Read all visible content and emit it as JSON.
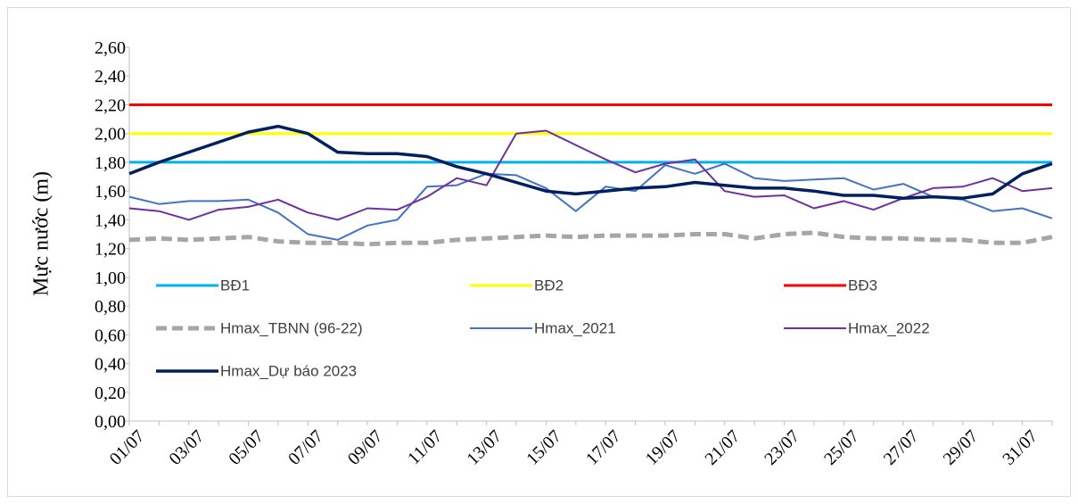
{
  "chart_data": {
    "type": "line",
    "y_label": "Mực nước (m)",
    "categories": [
      "01/07",
      null,
      "03/07",
      null,
      "05/07",
      null,
      "07/07",
      null,
      "09/07",
      null,
      "11/07",
      null,
      "13/07",
      null,
      "15/07",
      null,
      "17/07",
      null,
      "19/07",
      null,
      "21/07",
      null,
      "23/07",
      null,
      "25/07",
      null,
      "27/07",
      null,
      "29/07",
      null,
      "31/07",
      null
    ],
    "ylim": [
      0,
      2.6
    ],
    "yticks": [
      {
        "value": 0,
        "label": "0,00"
      },
      {
        "value": 0.2,
        "label": "0,20"
      },
      {
        "value": 0.4,
        "label": "0,40"
      },
      {
        "value": 0.6,
        "label": "0,60"
      },
      {
        "value": 0.8,
        "label": "0,80"
      },
      {
        "value": 1.0,
        "label": "1,00"
      },
      {
        "value": 1.2,
        "label": "1,20"
      },
      {
        "value": 1.4,
        "label": "1,40"
      },
      {
        "value": 1.6,
        "label": "1,60"
      },
      {
        "value": 1.8,
        "label": "1,80"
      },
      {
        "value": 2.0,
        "label": "2,00"
      },
      {
        "value": 2.2,
        "label": "2,20"
      },
      {
        "value": 2.4,
        "label": "2,40"
      },
      {
        "value": 2.6,
        "label": "2,60"
      }
    ],
    "series": [
      {
        "name": "BĐ1",
        "color": "#00b0f0",
        "line_width": 3,
        "dashed": false,
        "values": [
          1.8,
          1.8,
          1.8,
          1.8,
          1.8,
          1.8,
          1.8,
          1.8,
          1.8,
          1.8,
          1.8,
          1.8,
          1.8,
          1.8,
          1.8,
          1.8,
          1.8,
          1.8,
          1.8,
          1.8,
          1.8,
          1.8,
          1.8,
          1.8,
          1.8,
          1.8,
          1.8,
          1.8,
          1.8,
          1.8,
          1.8,
          1.8
        ]
      },
      {
        "name": "BĐ2",
        "color": "#ffff00",
        "line_width": 3,
        "dashed": false,
        "values": [
          2.0,
          2.0,
          2.0,
          2.0,
          2.0,
          2.0,
          2.0,
          2.0,
          2.0,
          2.0,
          2.0,
          2.0,
          2.0,
          2.0,
          2.0,
          2.0,
          2.0,
          2.0,
          2.0,
          2.0,
          2.0,
          2.0,
          2.0,
          2.0,
          2.0,
          2.0,
          2.0,
          2.0,
          2.0,
          2.0,
          2.0,
          2.0
        ]
      },
      {
        "name": "BĐ3",
        "color": "#ff0000",
        "line_width": 3,
        "dashed": false,
        "values": [
          2.2,
          2.2,
          2.2,
          2.2,
          2.2,
          2.2,
          2.2,
          2.2,
          2.2,
          2.2,
          2.2,
          2.2,
          2.2,
          2.2,
          2.2,
          2.2,
          2.2,
          2.2,
          2.2,
          2.2,
          2.2,
          2.2,
          2.2,
          2.2,
          2.2,
          2.2,
          2.2,
          2.2,
          2.2,
          2.2,
          2.2,
          2.2
        ]
      },
      {
        "name": "Hmax_TBNN (96-22)",
        "color": "#a6a6a6",
        "line_width": 5,
        "dashed": true,
        "values": [
          1.26,
          1.27,
          1.26,
          1.27,
          1.28,
          1.25,
          1.24,
          1.24,
          1.23,
          1.24,
          1.24,
          1.26,
          1.27,
          1.28,
          1.29,
          1.28,
          1.29,
          1.29,
          1.29,
          1.3,
          1.3,
          1.27,
          1.3,
          1.31,
          1.28,
          1.27,
          1.27,
          1.26,
          1.26,
          1.24,
          1.24,
          1.28
        ]
      },
      {
        "name": "Hmax_2021",
        "color": "#4472c4",
        "line_width": 2,
        "dashed": false,
        "values": [
          1.56,
          1.51,
          1.53,
          1.53,
          1.54,
          1.45,
          1.3,
          1.26,
          1.36,
          1.4,
          1.63,
          1.64,
          1.72,
          1.71,
          1.62,
          1.46,
          1.63,
          1.6,
          1.78,
          1.72,
          1.79,
          1.69,
          1.67,
          1.68,
          1.69,
          1.61,
          1.65,
          1.56,
          1.54,
          1.46,
          1.48,
          1.41
        ]
      },
      {
        "name": "Hmax_2022",
        "color": "#7030a0",
        "line_width": 2,
        "dashed": false,
        "values": [
          1.48,
          1.46,
          1.4,
          1.47,
          1.49,
          1.54,
          1.45,
          1.4,
          1.48,
          1.47,
          1.56,
          1.69,
          1.64,
          2.0,
          2.02,
          1.92,
          1.82,
          1.73,
          1.79,
          1.82,
          1.6,
          1.56,
          1.57,
          1.48,
          1.53,
          1.47,
          1.55,
          1.62,
          1.63,
          1.69,
          1.6,
          1.62
        ]
      },
      {
        "name": "Hmax_Dự báo 2023",
        "color": "#002060",
        "line_width": 3.5,
        "dashed": false,
        "values": [
          1.72,
          1.8,
          1.87,
          1.94,
          2.01,
          2.05,
          2.0,
          1.87,
          1.86,
          1.86,
          1.84,
          1.77,
          1.72,
          1.66,
          1.6,
          1.58,
          1.6,
          1.62,
          1.63,
          1.66,
          1.64,
          1.62,
          1.62,
          1.6,
          1.57,
          1.57,
          1.55,
          1.56,
          1.55,
          1.58,
          1.72,
          1.79
        ]
      }
    ]
  }
}
